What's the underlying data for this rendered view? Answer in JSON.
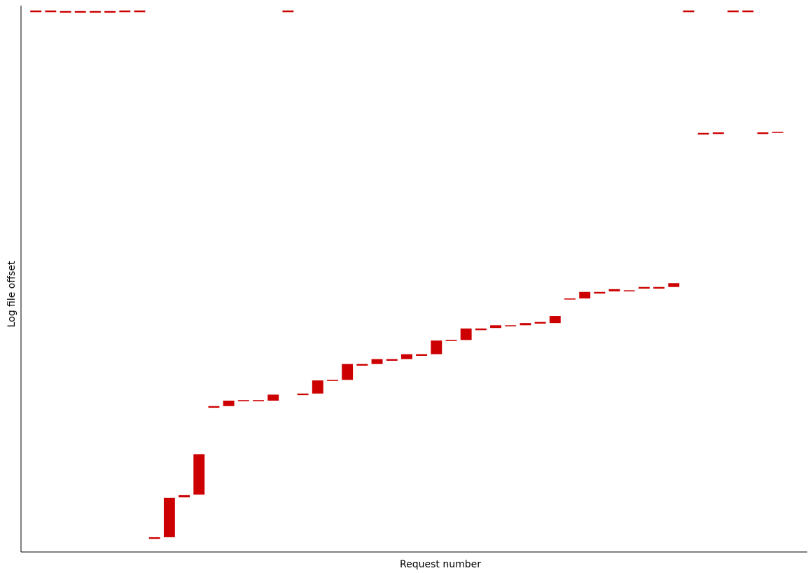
{
  "chart_data": {
    "type": "range_bar",
    "x_label": "Request number",
    "y_label": "Log file offset",
    "x": [
      1,
      2,
      3,
      4,
      5,
      6,
      7,
      8,
      9,
      10,
      11,
      12,
      13,
      14,
      15,
      16,
      17,
      18,
      19,
      20,
      21,
      22,
      23,
      24,
      25,
      26,
      27,
      28,
      29,
      30,
      31,
      32,
      33,
      34,
      35,
      36,
      37,
      38,
      39,
      40,
      41,
      42,
      43,
      44,
      45,
      46,
      47,
      48,
      49,
      50,
      51
    ],
    "low": [
      98.8,
      98.8,
      98.7,
      98.7,
      98.7,
      98.7,
      98.8,
      98.8,
      2.4,
      2.7,
      10.0,
      10.5,
      26.4,
      26.7,
      27.6,
      27.6,
      27.7,
      98.8,
      28.7,
      29.0,
      31.3,
      31.5,
      34.1,
      34.4,
      35.0,
      35.3,
      35.9,
      36.2,
      38.6,
      38.8,
      40.6,
      41.0,
      41.3,
      41.5,
      41.8,
      41.9,
      46.2,
      46.4,
      47.3,
      47.7,
      47.7,
      48.2,
      48.2,
      48.5,
      98.8,
      76.4,
      76.5,
      98.8,
      98.8,
      76.5,
      76.7
    ],
    "high": [
      99.1,
      99.1,
      99.0,
      99.0,
      99.0,
      99.0,
      99.1,
      99.1,
      2.7,
      9.9,
      10.4,
      17.9,
      26.7,
      27.7,
      27.8,
      27.8,
      28.8,
      99.1,
      29.0,
      31.4,
      31.5,
      34.4,
      34.4,
      35.3,
      35.3,
      36.2,
      36.2,
      38.7,
      38.8,
      40.9,
      40.9,
      41.5,
      41.5,
      41.9,
      42.1,
      43.2,
      46.4,
      47.6,
      47.6,
      48.1,
      47.9,
      48.5,
      48.5,
      49.2,
      99.1,
      76.7,
      76.8,
      99.1,
      99.1,
      76.8,
      76.9
    ],
    "color": "#cc0000",
    "xlim": [
      0,
      53
    ],
    "ylim": [
      0,
      100
    ]
  }
}
